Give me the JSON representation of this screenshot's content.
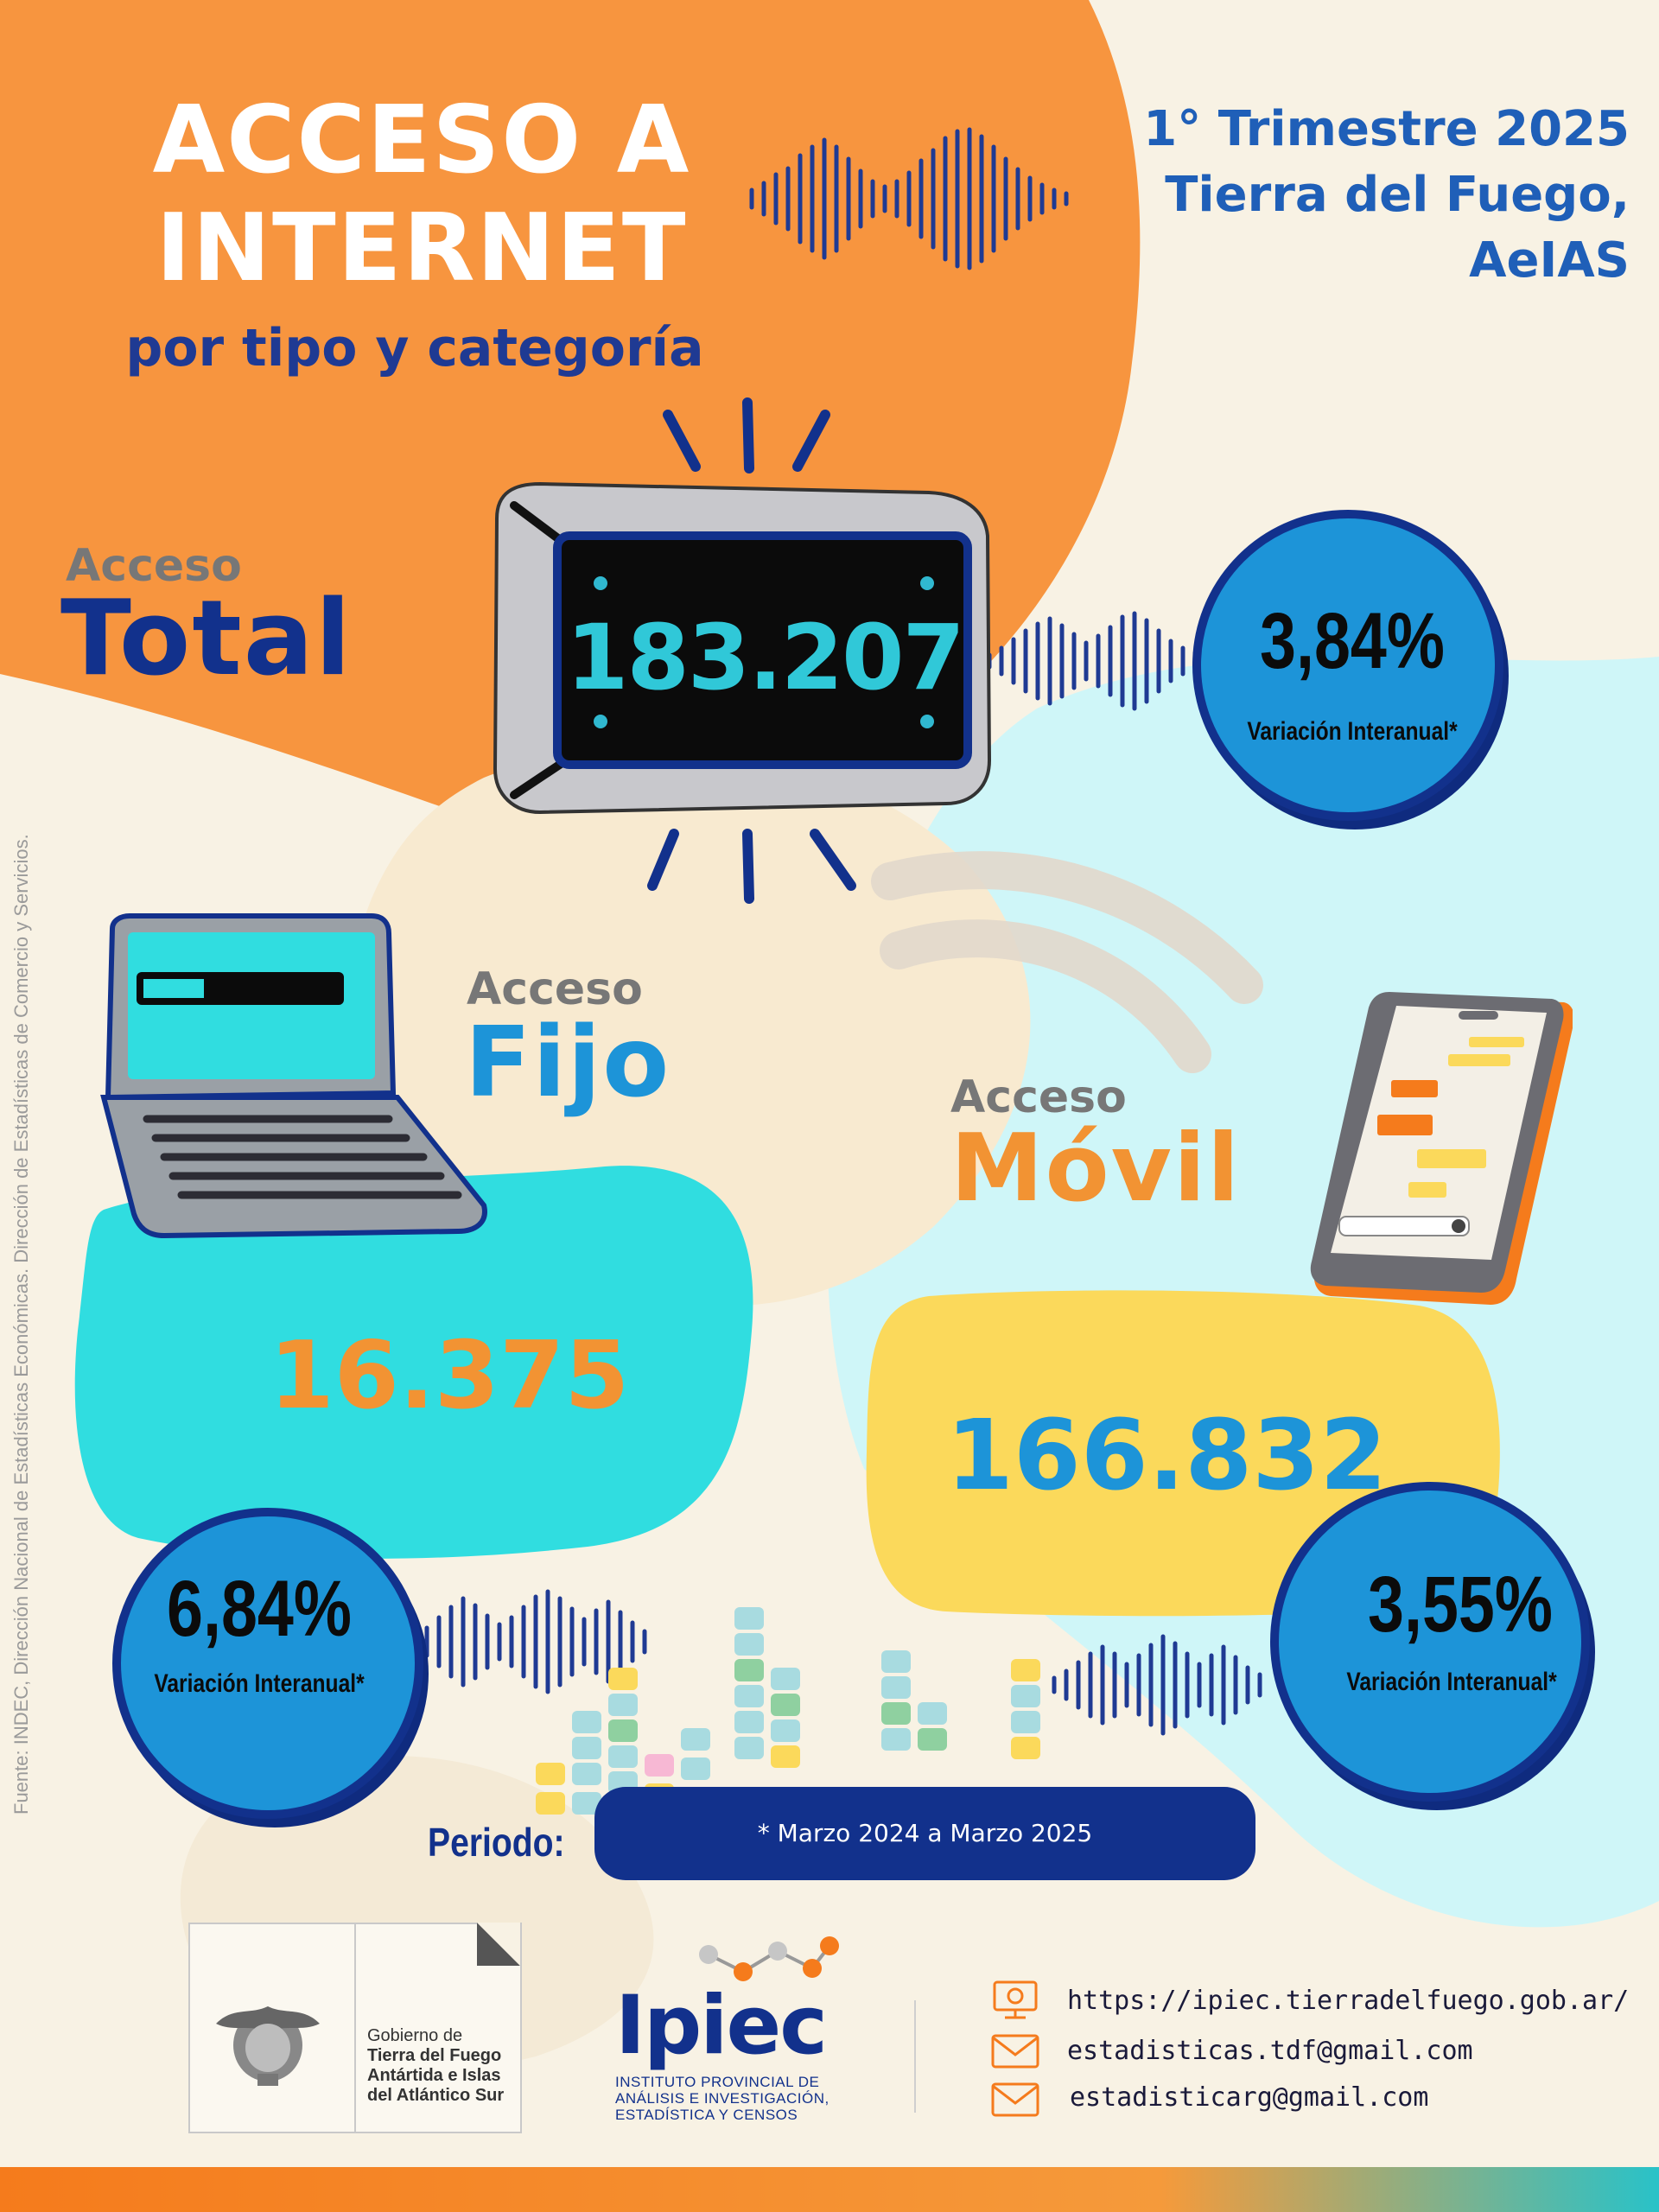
{
  "header": {
    "title_line1": "ACCESO A",
    "title_line2": "INTERNET",
    "subtitle": "por tipo y categoría",
    "period_line1": "1° Trimestre 2025",
    "period_line2": "Tierra del Fuego,",
    "period_line3": "AeIAS"
  },
  "total": {
    "label_small": "Acceso",
    "label_big": "Total",
    "value": "183.207",
    "pct": "3,84%",
    "pct_label": "Variación Interanual*"
  },
  "fijo": {
    "label_small": "Acceso",
    "label_big": "Fijo",
    "value": "16.375",
    "pct": "6,84%",
    "pct_label": "Variación Interanual*"
  },
  "movil": {
    "label_small": "Acceso",
    "label_big": "Móvil",
    "value": "166.832",
    "pct": "3,55%",
    "pct_label": "Variación Interanual*"
  },
  "periodo": {
    "label": "Periodo:",
    "value": "* Marzo 2024 a Marzo 2025"
  },
  "source_note": "Fuente: INDEC, Dirección Nacional de Estadísticas Económicas. Dirección de Estadísticas de Comercio y Servicios.",
  "footer": {
    "gov_text_1": "Gobierno de",
    "gov_text_2": "Tierra del Fuego",
    "gov_text_3": "Antártida e Islas",
    "gov_text_4": "del Atlántico Sur",
    "ipiec_logo": "Ipiec",
    "ipiec_line1": "INSTITUTO PROVINCIAL DE",
    "ipiec_line2": "ANÁLISIS E INVESTIGACIÓN,",
    "ipiec_line3": "ESTADÍSTICA Y CENSOS",
    "url": "https://ipiec.tierradelfuego.gob.ar/",
    "email1": "estadisticas.tdf@gmail.com",
    "email2": "estadisticarg@gmail.com"
  },
  "colors": {
    "orange": "#f7953f",
    "navy": "#12318c",
    "blue": "#1d94d8",
    "cyan": "#30dde0",
    "yellow": "#fbd95b",
    "light_cyan": "#cff6f8"
  },
  "icons": [
    "router-icon",
    "laptop-icon",
    "phone-icon",
    "wifi-icon",
    "web-icon",
    "mail-icon",
    "coat-of-arms-icon"
  ]
}
